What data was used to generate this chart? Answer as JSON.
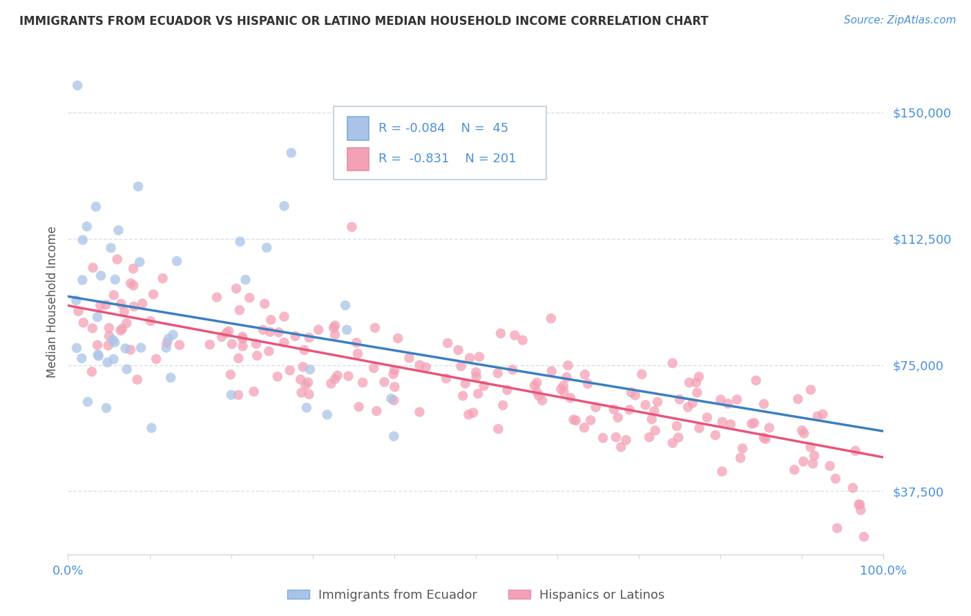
{
  "title": "IMMIGRANTS FROM ECUADOR VS HISPANIC OR LATINO MEDIAN HOUSEHOLD INCOME CORRELATION CHART",
  "source_text": "Source: ZipAtlas.com",
  "ylabel": "Median Household Income",
  "x_min": 0.0,
  "x_max": 1.0,
  "y_min": 18750,
  "y_max": 168750,
  "yticks": [
    37500,
    75000,
    112500,
    150000
  ],
  "ytick_labels": [
    "$37,500",
    "$75,000",
    "$112,500",
    "$150,000"
  ],
  "xtick_labels": [
    "0.0%",
    "100.0%"
  ],
  "background_color": "#ffffff",
  "grid_color": "#d4dce8",
  "title_color": "#333333",
  "axis_color": "#4a90d9",
  "ylabel_color": "#555555",
  "series1_name": "Immigrants from Ecuador",
  "series1_color": "#aac4e8",
  "series1_line_color": "#3a7fc1",
  "series1_R": -0.084,
  "series1_N": 45,
  "series2_name": "Hispanics or Latinos",
  "series2_color": "#f4a0b5",
  "series2_line_color": "#e8547a",
  "series2_R": -0.831,
  "series2_N": 201,
  "seed1": 12,
  "seed2": 55,
  "marker_size": 110,
  "marker_alpha": 0.75
}
